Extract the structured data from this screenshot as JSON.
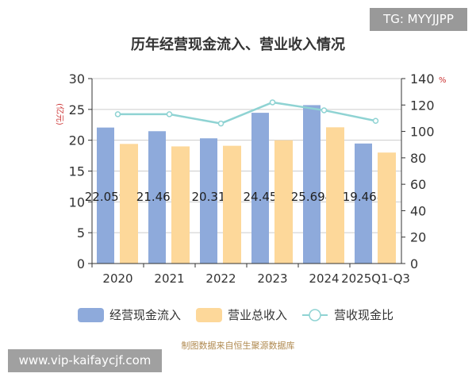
{
  "badge": "TG: MYYJJPP",
  "watermark": "www.vip-kaifaycjf.com",
  "source": "制图数据来自恒生聚源数据库",
  "chart_data": {
    "type": "bar",
    "title": "历年经营现金流入、营业收入情况",
    "categories": [
      "2020",
      "2021",
      "2022",
      "2023",
      "2024",
      "2025Q1-Q3"
    ],
    "ylabel_left": "(亿元)",
    "ylabel_right": "%",
    "ylim_left": [
      0,
      30
    ],
    "ylim_right": [
      0,
      140
    ],
    "yticks_left": [
      "0",
      "5",
      "10",
      "15",
      "20",
      "25",
      "30"
    ],
    "yticks_right": [
      "0",
      "20",
      "40",
      "60",
      "80",
      "100",
      "120",
      "140"
    ],
    "grid": true,
    "legend": "bottom",
    "series": [
      {
        "name": "经营现金流入",
        "type": "bar",
        "axis": "left",
        "color": "#8eaadb",
        "values": [
          22.059,
          21.465,
          20.31,
          24.45,
          25.694,
          19.468
        ],
        "labels": [
          "22.059",
          "21.465",
          "20.31",
          "24.45",
          "25.694",
          "19.468"
        ]
      },
      {
        "name": "营业总收入",
        "type": "bar",
        "axis": "left",
        "color": "#fdd89a",
        "values": [
          19.4,
          19.0,
          19.1,
          20.0,
          22.1,
          18.0
        ]
      },
      {
        "name": "营收现金比",
        "type": "line",
        "axis": "right",
        "color": "#8fd3d3",
        "values": [
          113,
          113,
          106,
          122,
          116,
          108
        ]
      }
    ]
  }
}
